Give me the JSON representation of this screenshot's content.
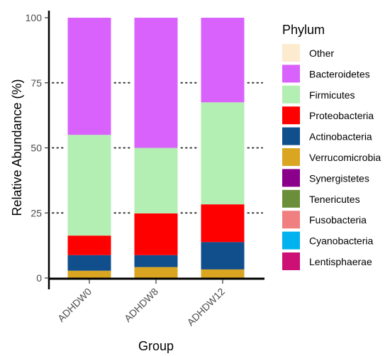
{
  "chart_data": {
    "type": "bar",
    "stacked": true,
    "xlabel": "Group",
    "ylabel": "Relative Abundance (%)",
    "ylim": [
      0,
      100
    ],
    "yticks": [
      0,
      25,
      50,
      75,
      100
    ],
    "grid": "dotted horizontal at 25, 50, 75 between bars",
    "legend_title": "Phylum",
    "legend_position": "right",
    "categories": [
      "ADHDW0",
      "ADHDW8",
      "ADHDW12"
    ],
    "series": [
      {
        "name": "Other",
        "color": "#FDEBD0",
        "values": [
          0,
          0,
          0
        ]
      },
      {
        "name": "Bacteroidetes",
        "color": "#DA62FC",
        "values": [
          45,
          50,
          32.5
        ]
      },
      {
        "name": "Firmicutes",
        "color": "#B3EEB3",
        "values": [
          38.7,
          25.2,
          39.2
        ]
      },
      {
        "name": "Proteobacteria",
        "color": "#FF0000",
        "values": [
          7.5,
          16,
          14.5
        ]
      },
      {
        "name": "Actinobacteria",
        "color": "#114E8C",
        "values": [
          6,
          4.6,
          10.5
        ]
      },
      {
        "name": "Verrucomicrobia",
        "color": "#DAA520",
        "values": [
          2.8,
          4.2,
          3.3
        ]
      },
      {
        "name": "Synergistetes",
        "color": "#8B008B",
        "values": [
          0,
          0,
          0
        ]
      },
      {
        "name": "Tenericutes",
        "color": "#6B8E3A",
        "values": [
          0,
          0,
          0
        ]
      },
      {
        "name": "Fusobacteria",
        "color": "#F08080",
        "values": [
          0,
          0,
          0
        ]
      },
      {
        "name": "Cyanobacteria",
        "color": "#00B2EE",
        "values": [
          0,
          0,
          0
        ]
      },
      {
        "name": "Lentisphaerae",
        "color": "#CD1076",
        "values": [
          0,
          0,
          0
        ]
      }
    ]
  }
}
